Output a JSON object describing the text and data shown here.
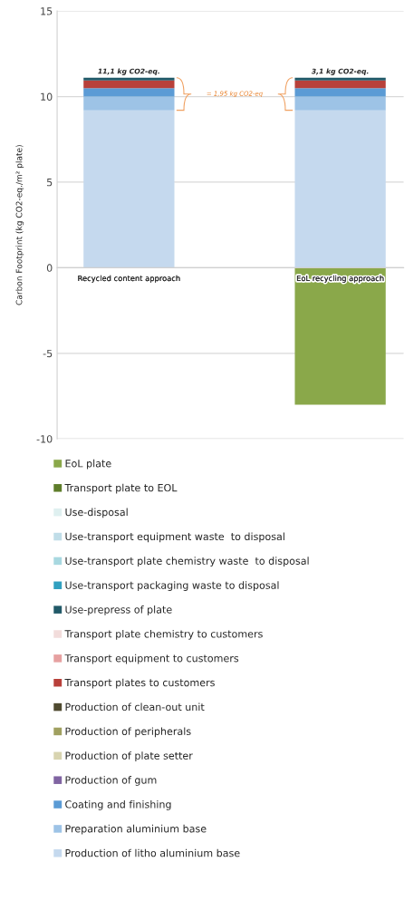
{
  "chart_data": {
    "type": "bar",
    "stacked": true,
    "ylabel": "Carbon Footprint (kg CO2-eq./m² plate)",
    "categories": [
      "Recycled content approach",
      "EoL recycling approach"
    ],
    "series": [
      {
        "name": "Production of litho aluminium base",
        "color": "#c5d9ee",
        "values": [
          9.2,
          9.2
        ]
      },
      {
        "name": "Preparation aluminium base",
        "color": "#9dc3e6",
        "values": [
          0.8,
          0.8
        ]
      },
      {
        "name": "Coating and finishing",
        "color": "#5b9bd5",
        "values": [
          0.5,
          0.5
        ]
      },
      {
        "name": "Production of gum",
        "color": "#8064a2",
        "values": [
          0,
          0
        ]
      },
      {
        "name": "Production of plate setter",
        "color": "#d8d4b0",
        "values": [
          0,
          0
        ]
      },
      {
        "name": "Production of peripherals",
        "color": "#a0a060",
        "values": [
          0,
          0
        ]
      },
      {
        "name": "Production of clean-out unit",
        "color": "#4f4a30",
        "values": [
          0,
          0
        ]
      },
      {
        "name": "Transport plates to customers",
        "color": "#b8403a",
        "values": [
          0.45,
          0.45
        ]
      },
      {
        "name": "Transport equipment to customers",
        "color": "#e6a0a0",
        "values": [
          0,
          0
        ]
      },
      {
        "name": "Transport plate chemistry to customers",
        "color": "#f2dcdb",
        "values": [
          0,
          0
        ]
      },
      {
        "name": "Use-prepress of plate",
        "color": "#215968",
        "values": [
          0.15,
          0.15
        ]
      },
      {
        "name": "Use-transport packaging waste to disposal",
        "color": "#31a0c0",
        "values": [
          0,
          0
        ]
      },
      {
        "name": "Use-transport plate chemistry waste  to disposal",
        "color": "#a8d8e0",
        "values": [
          0,
          0
        ]
      },
      {
        "name": "Use-transport equipment waste  to disposal",
        "color": "#c0dde8",
        "values": [
          0,
          0
        ]
      },
      {
        "name": "Use-disposal",
        "color": "#dff0f0",
        "values": [
          0,
          0
        ]
      },
      {
        "name": "Transport plate to EOL",
        "color": "#5e7d2a",
        "values": [
          0,
          0
        ]
      },
      {
        "name": "EoL plate",
        "color": "#8aa84a",
        "values": [
          0,
          -8.0
        ]
      }
    ],
    "totals": [
      "11,1 kg CO2-eq.",
      "3,1 kg CO2-eq."
    ],
    "annotations": [
      "= 1,95 kg CO2-eq"
    ],
    "ylim": [
      -10,
      15
    ],
    "yticks": [
      -10,
      -5,
      0,
      5,
      10,
      15
    ],
    "grid": "y",
    "legend": "bottom"
  }
}
